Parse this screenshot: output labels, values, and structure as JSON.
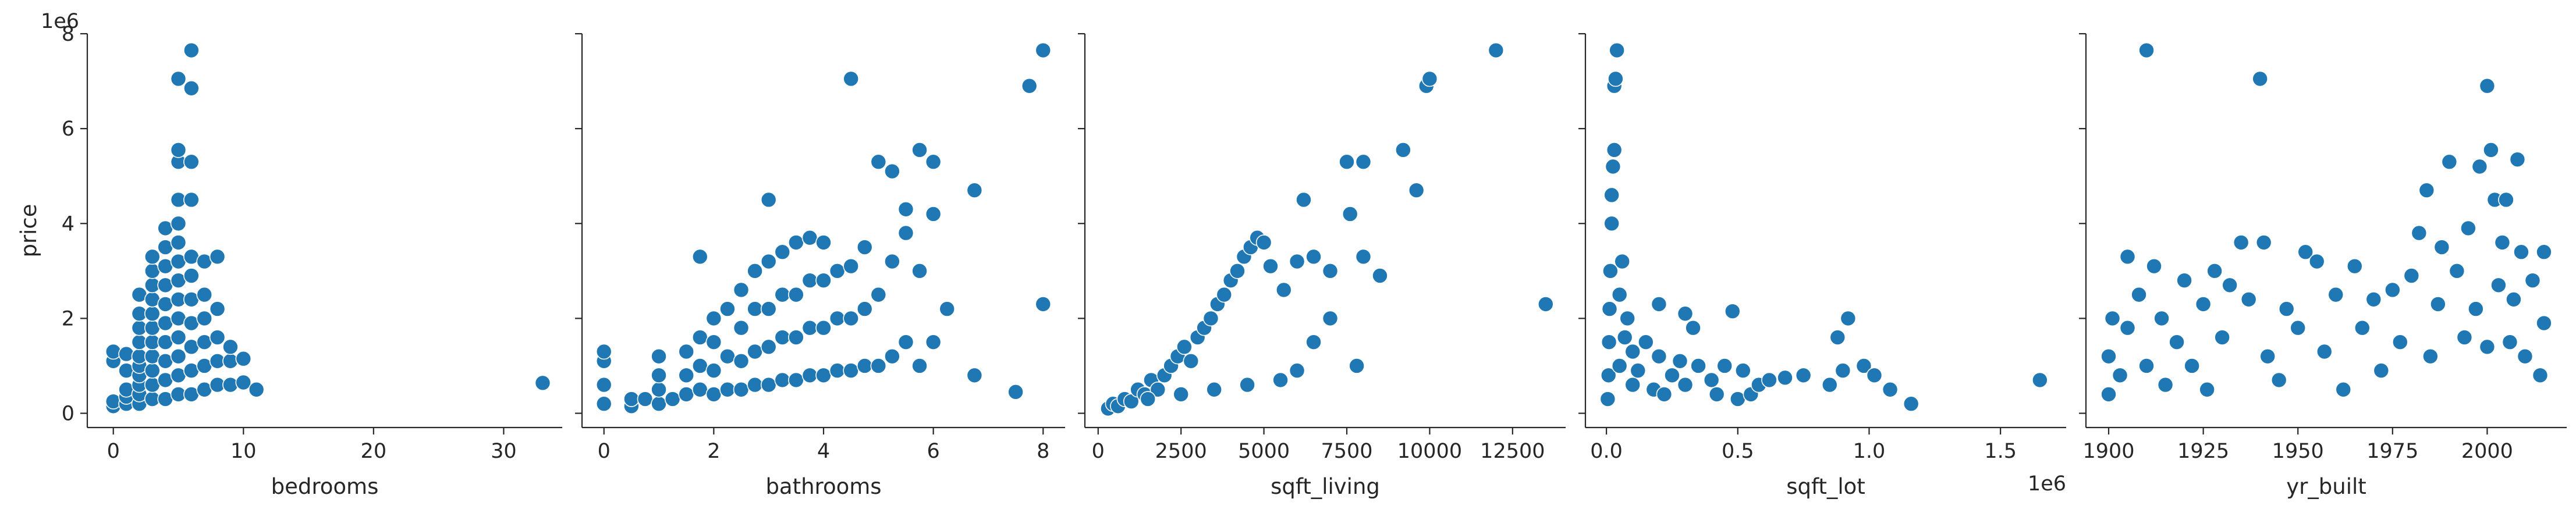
{
  "chart_data": [
    {
      "type": "scatter",
      "xlabel": "bedrooms",
      "ylabel": "price",
      "y_exponent_label": "1e6",
      "xlim": [
        -2,
        34.5
      ],
      "ylim": [
        -0.3,
        8.0
      ],
      "xticks": [
        0,
        10,
        20,
        30
      ],
      "xtick_labels": [
        "0",
        "10",
        "20",
        "30"
      ],
      "yticks": [
        0,
        2,
        4,
        6,
        8
      ],
      "ytick_labels": [
        "0",
        "2",
        "4",
        "6",
        "8"
      ],
      "grid": false,
      "points": [
        [
          0,
          0.15
        ],
        [
          0,
          0.25
        ],
        [
          0,
          1.1
        ],
        [
          0,
          1.3
        ],
        [
          1,
          0.2
        ],
        [
          1,
          0.35
        ],
        [
          1,
          0.5
        ],
        [
          1,
          0.9
        ],
        [
          1,
          1.25
        ],
        [
          2,
          0.2
        ],
        [
          2,
          0.4
        ],
        [
          2,
          0.6
        ],
        [
          2,
          0.8
        ],
        [
          2,
          1.0
        ],
        [
          2,
          1.2
        ],
        [
          2,
          1.5
        ],
        [
          2,
          1.8
        ],
        [
          2,
          2.1
        ],
        [
          2,
          2.5
        ],
        [
          3,
          0.3
        ],
        [
          3,
          0.6
        ],
        [
          3,
          0.9
        ],
        [
          3,
          1.2
        ],
        [
          3,
          1.5
        ],
        [
          3,
          1.8
        ],
        [
          3,
          2.1
        ],
        [
          3,
          2.4
        ],
        [
          3,
          2.7
        ],
        [
          3,
          3.0
        ],
        [
          3,
          3.3
        ],
        [
          4,
          0.3
        ],
        [
          4,
          0.7
        ],
        [
          4,
          1.1
        ],
        [
          4,
          1.5
        ],
        [
          4,
          1.9
        ],
        [
          4,
          2.3
        ],
        [
          4,
          2.7
        ],
        [
          4,
          3.1
        ],
        [
          4,
          3.5
        ],
        [
          4,
          3.9
        ],
        [
          5,
          0.4
        ],
        [
          5,
          0.8
        ],
        [
          5,
          1.2
        ],
        [
          5,
          1.6
        ],
        [
          5,
          2.0
        ],
        [
          5,
          2.4
        ],
        [
          5,
          2.8
        ],
        [
          5,
          3.2
        ],
        [
          5,
          3.6
        ],
        [
          5,
          4.0
        ],
        [
          5,
          4.5
        ],
        [
          5,
          5.3
        ],
        [
          5,
          5.55
        ],
        [
          5,
          7.05
        ],
        [
          6,
          0.4
        ],
        [
          6,
          0.9
        ],
        [
          6,
          1.4
        ],
        [
          6,
          1.9
        ],
        [
          6,
          2.4
        ],
        [
          6,
          2.9
        ],
        [
          6,
          3.3
        ],
        [
          6,
          4.5
        ],
        [
          6,
          5.3
        ],
        [
          6,
          6.85
        ],
        [
          6,
          7.65
        ],
        [
          7,
          0.5
        ],
        [
          7,
          1.0
        ],
        [
          7,
          1.5
        ],
        [
          7,
          2.0
        ],
        [
          7,
          2.5
        ],
        [
          7,
          3.2
        ],
        [
          8,
          0.6
        ],
        [
          8,
          1.1
        ],
        [
          8,
          1.6
        ],
        [
          8,
          2.2
        ],
        [
          8,
          3.3
        ],
        [
          9,
          0.6
        ],
        [
          9,
          1.1
        ],
        [
          9,
          1.4
        ],
        [
          10,
          0.65
        ],
        [
          10,
          1.15
        ],
        [
          11,
          0.5
        ],
        [
          33,
          0.64
        ]
      ]
    },
    {
      "type": "scatter",
      "xlabel": "bathrooms",
      "ylabel": "",
      "xlim": [
        -0.4,
        8.4
      ],
      "ylim": [
        -0.3,
        8.0
      ],
      "xticks": [
        0,
        2,
        4,
        6,
        8
      ],
      "xtick_labels": [
        "0",
        "2",
        "4",
        "6",
        "8"
      ],
      "yticks": [
        0,
        2,
        4,
        6,
        8
      ],
      "grid": false,
      "points": [
        [
          0,
          0.2
        ],
        [
          0,
          0.6
        ],
        [
          0,
          1.1
        ],
        [
          0,
          1.3
        ],
        [
          0.5,
          0.15
        ],
        [
          0.5,
          0.3
        ],
        [
          0.75,
          0.3
        ],
        [
          1,
          0.2
        ],
        [
          1,
          0.5
        ],
        [
          1,
          0.8
        ],
        [
          1,
          1.2
        ],
        [
          1.25,
          0.3
        ],
        [
          1.5,
          0.4
        ],
        [
          1.5,
          0.8
        ],
        [
          1.5,
          1.3
        ],
        [
          1.75,
          0.5
        ],
        [
          1.75,
          1.0
        ],
        [
          1.75,
          1.6
        ],
        [
          1.75,
          3.3
        ],
        [
          2,
          0.4
        ],
        [
          2,
          0.9
        ],
        [
          2,
          1.5
        ],
        [
          2,
          2.0
        ],
        [
          2.25,
          0.5
        ],
        [
          2.25,
          1.2
        ],
        [
          2.25,
          2.2
        ],
        [
          2.5,
          0.5
        ],
        [
          2.5,
          1.1
        ],
        [
          2.5,
          1.8
        ],
        [
          2.5,
          2.6
        ],
        [
          2.75,
          0.6
        ],
        [
          2.75,
          1.3
        ],
        [
          2.75,
          2.2
        ],
        [
          2.75,
          3.0
        ],
        [
          3,
          0.6
        ],
        [
          3,
          1.4
        ],
        [
          3,
          2.2
        ],
        [
          3,
          3.2
        ],
        [
          3,
          4.5
        ],
        [
          3.25,
          0.7
        ],
        [
          3.25,
          1.6
        ],
        [
          3.25,
          2.5
        ],
        [
          3.25,
          3.4
        ],
        [
          3.5,
          0.7
        ],
        [
          3.5,
          1.6
        ],
        [
          3.5,
          2.5
        ],
        [
          3.5,
          3.6
        ],
        [
          3.75,
          0.8
        ],
        [
          3.75,
          1.8
        ],
        [
          3.75,
          2.8
        ],
        [
          3.75,
          3.7
        ],
        [
          4,
          0.8
        ],
        [
          4,
          1.8
        ],
        [
          4,
          2.8
        ],
        [
          4,
          3.6
        ],
        [
          4.25,
          0.9
        ],
        [
          4.25,
          2.0
        ],
        [
          4.25,
          3.0
        ],
        [
          4.5,
          0.9
        ],
        [
          4.5,
          2.0
        ],
        [
          4.5,
          3.1
        ],
        [
          4.5,
          7.05
        ],
        [
          4.75,
          1.0
        ],
        [
          4.75,
          2.2
        ],
        [
          4.75,
          3.5
        ],
        [
          5,
          1.0
        ],
        [
          5,
          2.5
        ],
        [
          5,
          5.3
        ],
        [
          5.25,
          1.2
        ],
        [
          5.25,
          3.2
        ],
        [
          5.25,
          5.1
        ],
        [
          5.5,
          1.5
        ],
        [
          5.5,
          3.8
        ],
        [
          5.5,
          4.3
        ],
        [
          5.75,
          1.0
        ],
        [
          5.75,
          3.0
        ],
        [
          5.75,
          5.55
        ],
        [
          6,
          1.5
        ],
        [
          6,
          4.2
        ],
        [
          6,
          5.3
        ],
        [
          6.25,
          2.2
        ],
        [
          6.75,
          0.8
        ],
        [
          6.75,
          4.7
        ],
        [
          7.5,
          0.45
        ],
        [
          7.75,
          6.9
        ],
        [
          8,
          2.3
        ],
        [
          8,
          7.65
        ]
      ]
    },
    {
      "type": "scatter",
      "xlabel": "sqft_living",
      "ylabel": "",
      "xlim": [
        -400,
        14100
      ],
      "ylim": [
        -0.3,
        8.0
      ],
      "xticks": [
        0,
        2500,
        5000,
        7500,
        10000,
        12500
      ],
      "xtick_labels": [
        "0",
        "2500",
        "5000",
        "7500",
        "10000",
        "12500"
      ],
      "yticks": [
        0,
        2,
        4,
        6,
        8
      ],
      "grid": false,
      "points": [
        [
          300,
          0.1
        ],
        [
          450,
          0.2
        ],
        [
          600,
          0.15
        ],
        [
          800,
          0.3
        ],
        [
          1000,
          0.25
        ],
        [
          1200,
          0.5
        ],
        [
          1400,
          0.4
        ],
        [
          1600,
          0.7
        ],
        [
          1800,
          0.5
        ],
        [
          2000,
          0.8
        ],
        [
          2200,
          1.0
        ],
        [
          2400,
          1.2
        ],
        [
          2600,
          1.4
        ],
        [
          2800,
          1.1
        ],
        [
          3000,
          1.6
        ],
        [
          3200,
          1.8
        ],
        [
          3400,
          2.0
        ],
        [
          3600,
          2.3
        ],
        [
          3800,
          2.5
        ],
        [
          4000,
          2.8
        ],
        [
          4200,
          3.0
        ],
        [
          4400,
          3.3
        ],
        [
          4600,
          3.5
        ],
        [
          4800,
          3.7
        ],
        [
          5000,
          3.6
        ],
        [
          1500,
          0.3
        ],
        [
          2500,
          0.4
        ],
        [
          3500,
          0.5
        ],
        [
          4500,
          0.6
        ],
        [
          5500,
          0.7
        ],
        [
          6000,
          0.9
        ],
        [
          6500,
          1.5
        ],
        [
          7000,
          2.0
        ],
        [
          5200,
          3.1
        ],
        [
          5600,
          2.6
        ],
        [
          6000,
          3.2
        ],
        [
          6200,
          4.5
        ],
        [
          6500,
          3.3
        ],
        [
          7000,
          3.0
        ],
        [
          7500,
          5.3
        ],
        [
          7600,
          4.2
        ],
        [
          7800,
          1.0
        ],
        [
          8000,
          3.3
        ],
        [
          8000,
          5.3
        ],
        [
          8500,
          2.9
        ],
        [
          9200,
          5.55
        ],
        [
          9600,
          4.7
        ],
        [
          9900,
          6.9
        ],
        [
          10000,
          7.05
        ],
        [
          12000,
          7.65
        ],
        [
          13500,
          2.3
        ]
      ]
    },
    {
      "type": "scatter",
      "xlabel": "sqft_lot",
      "ylabel": "",
      "x_exponent_label": "1e6",
      "xlim": [
        -0.08,
        1.75
      ],
      "ylim": [
        -0.3,
        8.0
      ],
      "xticks": [
        0.0,
        0.5,
        1.0,
        1.5
      ],
      "xtick_labels": [
        "0.0",
        "0.5",
        "1.0",
        "1.5"
      ],
      "yticks": [
        0,
        2,
        4,
        6,
        8
      ],
      "grid": false,
      "points": [
        [
          0.005,
          0.3
        ],
        [
          0.008,
          0.8
        ],
        [
          0.01,
          1.5
        ],
        [
          0.012,
          2.2
        ],
        [
          0.015,
          3.0
        ],
        [
          0.02,
          4.0
        ],
        [
          0.02,
          4.6
        ],
        [
          0.025,
          5.2
        ],
        [
          0.03,
          5.55
        ],
        [
          0.03,
          6.9
        ],
        [
          0.035,
          7.05
        ],
        [
          0.04,
          7.65
        ],
        [
          0.05,
          2.5
        ],
        [
          0.05,
          1.0
        ],
        [
          0.06,
          3.2
        ],
        [
          0.07,
          1.6
        ],
        [
          0.08,
          2.0
        ],
        [
          0.1,
          0.6
        ],
        [
          0.1,
          1.3
        ],
        [
          0.12,
          0.9
        ],
        [
          0.15,
          1.5
        ],
        [
          0.18,
          0.5
        ],
        [
          0.2,
          1.2
        ],
        [
          0.2,
          2.3
        ],
        [
          0.22,
          0.4
        ],
        [
          0.25,
          0.8
        ],
        [
          0.28,
          1.1
        ],
        [
          0.3,
          2.1
        ],
        [
          0.3,
          0.6
        ],
        [
          0.33,
          1.8
        ],
        [
          0.35,
          1.0
        ],
        [
          0.4,
          0.7
        ],
        [
          0.42,
          0.4
        ],
        [
          0.45,
          1.0
        ],
        [
          0.48,
          2.15
        ],
        [
          0.5,
          0.3
        ],
        [
          0.52,
          0.9
        ],
        [
          0.55,
          0.4
        ],
        [
          0.58,
          0.6
        ],
        [
          0.62,
          0.7
        ],
        [
          0.68,
          0.75
        ],
        [
          0.75,
          0.8
        ],
        [
          0.85,
          0.6
        ],
        [
          0.88,
          1.6
        ],
        [
          0.9,
          0.9
        ],
        [
          0.92,
          2.0
        ],
        [
          0.98,
          1.0
        ],
        [
          1.02,
          0.8
        ],
        [
          1.08,
          0.5
        ],
        [
          1.16,
          0.2
        ],
        [
          1.65,
          0.7
        ]
      ]
    },
    {
      "type": "scatter",
      "xlabel": "yr_built",
      "ylabel": "",
      "xlim": [
        1894,
        2021
      ],
      "ylim": [
        -0.3,
        8.0
      ],
      "xticks": [
        1900,
        1925,
        1950,
        1975,
        2000
      ],
      "xtick_labels": [
        "1900",
        "1925",
        "1950",
        "1975",
        "2000"
      ],
      "yticks": [
        0,
        2,
        4,
        6,
        8
      ],
      "grid": false,
      "points": [
        [
          1900,
          0.4
        ],
        [
          1900,
          1.2
        ],
        [
          1901,
          2.0
        ],
        [
          1903,
          0.8
        ],
        [
          1905,
          1.8
        ],
        [
          1905,
          3.3
        ],
        [
          1908,
          2.5
        ],
        [
          1910,
          7.65
        ],
        [
          1910,
          1.0
        ],
        [
          1912,
          3.1
        ],
        [
          1914,
          2.0
        ],
        [
          1915,
          0.6
        ],
        [
          1918,
          1.5
        ],
        [
          1920,
          2.8
        ],
        [
          1922,
          1.0
        ],
        [
          1925,
          2.3
        ],
        [
          1926,
          0.5
        ],
        [
          1928,
          3.0
        ],
        [
          1930,
          1.6
        ],
        [
          1932,
          2.7
        ],
        [
          1935,
          3.6
        ],
        [
          1937,
          2.4
        ],
        [
          1940,
          7.05
        ],
        [
          1941,
          3.6
        ],
        [
          1942,
          1.2
        ],
        [
          1945,
          0.7
        ],
        [
          1947,
          2.2
        ],
        [
          1950,
          1.8
        ],
        [
          1952,
          3.4
        ],
        [
          1955,
          3.2
        ],
        [
          1957,
          1.3
        ],
        [
          1960,
          2.5
        ],
        [
          1962,
          0.5
        ],
        [
          1965,
          3.1
        ],
        [
          1967,
          1.8
        ],
        [
          1970,
          2.4
        ],
        [
          1972,
          0.9
        ],
        [
          1975,
          2.6
        ],
        [
          1977,
          1.5
        ],
        [
          1980,
          2.9
        ],
        [
          1982,
          3.8
        ],
        [
          1984,
          4.7
        ],
        [
          1985,
          1.2
        ],
        [
          1987,
          2.3
        ],
        [
          1988,
          3.5
        ],
        [
          1990,
          5.3
        ],
        [
          1992,
          3.0
        ],
        [
          1994,
          1.6
        ],
        [
          1995,
          3.9
        ],
        [
          1997,
          2.2
        ],
        [
          1998,
          5.2
        ],
        [
          2000,
          6.9
        ],
        [
          2000,
          1.4
        ],
        [
          2001,
          5.55
        ],
        [
          2002,
          4.5
        ],
        [
          2003,
          2.7
        ],
        [
          2004,
          3.6
        ],
        [
          2005,
          4.5
        ],
        [
          2006,
          1.5
        ],
        [
          2007,
          2.4
        ],
        [
          2008,
          5.35
        ],
        [
          2009,
          3.4
        ],
        [
          2010,
          1.2
        ],
        [
          2012,
          2.8
        ],
        [
          2014,
          0.8
        ],
        [
          2015,
          3.4
        ],
        [
          2015,
          1.9
        ]
      ]
    }
  ]
}
